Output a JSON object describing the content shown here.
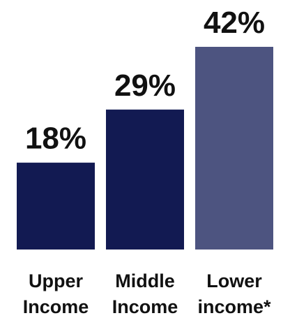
{
  "chart_data": {
    "type": "bar",
    "title": "",
    "xlabel": "",
    "ylabel": "",
    "ylim": [
      0,
      42
    ],
    "categories": [
      [
        "Upper",
        "Income"
      ],
      [
        "Middle",
        "Income"
      ],
      [
        "Lower",
        "income*"
      ]
    ],
    "values": [
      18,
      29,
      42
    ],
    "value_labels": [
      "18%",
      "29%",
      "42%"
    ],
    "colors": [
      "#121a52",
      "#121a52",
      "#4d5480"
    ]
  }
}
